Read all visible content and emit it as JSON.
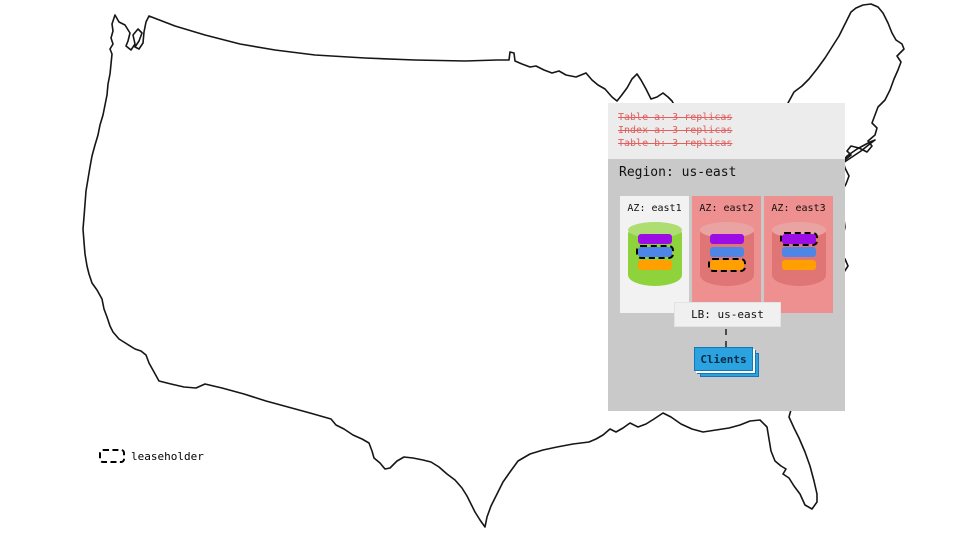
{
  "legend": {
    "label": "leaseholder"
  },
  "overlay": {
    "schema_lines": [
      "Table a: 3 replicas",
      "Index a: 3 replicas",
      "Table b: 3 replicas"
    ],
    "region_title": "Region: us-east",
    "azs": [
      {
        "label": "AZ: east1",
        "zone_style": "normal",
        "cylinder": "green",
        "replicas": [
          {
            "color": "purple",
            "leaseholder": false
          },
          {
            "color": "blue",
            "leaseholder": true
          },
          {
            "color": "orange",
            "leaseholder": false
          }
        ]
      },
      {
        "label": "AZ: east2",
        "zone_style": "alert",
        "cylinder": "red",
        "replicas": [
          {
            "color": "purple",
            "leaseholder": false
          },
          {
            "color": "blue",
            "leaseholder": false
          },
          {
            "color": "orange",
            "leaseholder": true
          }
        ]
      },
      {
        "label": "AZ: east3",
        "zone_style": "alert",
        "cylinder": "red",
        "replicas": [
          {
            "color": "purple",
            "leaseholder": true
          },
          {
            "color": "blue",
            "leaseholder": false
          },
          {
            "color": "orange",
            "leaseholder": false
          }
        ]
      }
    ],
    "lb_label": "LB: us-east",
    "clients_label": "Clients"
  },
  "colors": {
    "replica_purple": "#9b0de4",
    "replica_blue": "#4e86e8",
    "replica_orange": "#ffa000",
    "cylinder_green": "#8ed23c",
    "cylinder_green_top": "#aede71",
    "cylinder_red": "#df7575",
    "cylinder_red_top": "#eaa3a3",
    "az_alert_bg": "#ef9090",
    "clients_blue": "#2aa3e0",
    "strikethrough_red": "#e06060"
  }
}
